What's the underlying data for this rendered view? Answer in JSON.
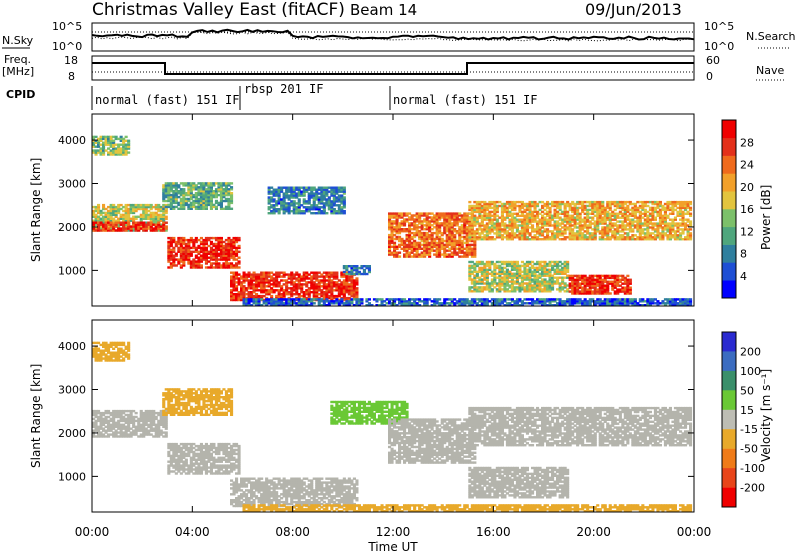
{
  "header": {
    "station": "Christmas Valley East (fitACF)",
    "beam": "Beam 14",
    "date": "09/Jun/2013"
  },
  "panels": {
    "noise": {
      "left_label": "N.Sky",
      "left_ticks": [
        "10^5",
        "10^0"
      ],
      "right_ticks": [
        "10^5",
        "10^0"
      ],
      "right_label": "N.Search"
    },
    "freq": {
      "left_label_1": "Freq.",
      "left_label_2": "[MHz]",
      "left_ticks": [
        "18",
        "8"
      ],
      "right_ticks": [
        "60",
        "0"
      ],
      "right_label": "Nave"
    },
    "cpid": {
      "label": "CPID",
      "segments": [
        "normal (fast) 151 IF",
        "rbsp 201 IF",
        "normal (fast) 151 IF"
      ]
    }
  },
  "colors": {
    "power_scale": [
      "#0000ff",
      "#1e4fd4",
      "#2f7f9e",
      "#4fa67d",
      "#7cc06a",
      "#e2c43e",
      "#f2a02a",
      "#ef6a1c",
      "#e3301a",
      "#f00000"
    ],
    "velocity_scale": [
      "#2a2ad0",
      "#3b6cc0",
      "#3a8f6a",
      "#6ac835",
      "#bdbdb4",
      "#e8a92a",
      "#ef7b18",
      "#e8451a",
      "#f00000"
    ],
    "ground_scatter": "#b4b4ac"
  },
  "chart_data": [
    {
      "type": "heatmap",
      "parameter": "power",
      "xlabel": "",
      "ylabel": "Slant Range [km]",
      "x_ticks": [
        "00:00",
        "04:00",
        "08:00",
        "12:00",
        "16:00",
        "20:00",
        "00:00"
      ],
      "y_ticks": [
        "1000",
        "2000",
        "3000",
        "4000"
      ],
      "ylim": [
        180,
        4600
      ],
      "colorbar": {
        "label": "Power [dB]",
        "ticks": [
          "4",
          "8",
          "12",
          "16",
          "20",
          "24",
          "28"
        ],
        "range": [
          0,
          32
        ]
      },
      "bands": [
        {
          "t": [
            0,
            3.0
          ],
          "range_km": [
            1900,
            2500
          ],
          "power_db": 16
        },
        {
          "t": [
            0,
            3.0
          ],
          "range_km": [
            1900,
            2100
          ],
          "power_db": 28
        },
        {
          "t": [
            0,
            1.5
          ],
          "range_km": [
            3650,
            4100
          ],
          "power_db": 14
        },
        {
          "t": [
            3.0,
            5.8
          ],
          "range_km": [
            1050,
            1750
          ],
          "power_db": 28
        },
        {
          "t": [
            2.8,
            5.5
          ],
          "range_km": [
            2400,
            3000
          ],
          "power_db": 12
        },
        {
          "t": [
            5.5,
            10.5
          ],
          "range_km": [
            300,
            950
          ],
          "power_db": 28
        },
        {
          "t": [
            7.0,
            10.0
          ],
          "range_km": [
            2300,
            2900
          ],
          "power_db": 8
        },
        {
          "t": [
            10.0,
            11.0
          ],
          "range_km": [
            900,
            1100
          ],
          "power_db": 8
        },
        {
          "t": [
            11.8,
            15.2
          ],
          "range_km": [
            1300,
            2300
          ],
          "power_db": 24
        },
        {
          "t": [
            15.0,
            23.9
          ],
          "range_km": [
            1700,
            2600
          ],
          "power_db": 20
        },
        {
          "t": [
            15.0,
            19.0
          ],
          "range_km": [
            500,
            1200
          ],
          "power_db": 16
        },
        {
          "t": [
            19.0,
            21.5
          ],
          "range_km": [
            450,
            900
          ],
          "power_db": 28
        },
        {
          "t": [
            6.0,
            23.9
          ],
          "range_km": [
            180,
            320
          ],
          "power_db": 6
        }
      ]
    },
    {
      "type": "heatmap",
      "parameter": "velocity",
      "xlabel": "Time UT",
      "ylabel": "Slant Range [km]",
      "x_ticks": [
        "00:00",
        "04:00",
        "08:00",
        "12:00",
        "16:00",
        "20:00",
        "00:00"
      ],
      "y_ticks": [
        "1000",
        "2000",
        "3000",
        "4000"
      ],
      "ylim": [
        180,
        4600
      ],
      "colorbar": {
        "label": "Velocity [m s⁻¹]",
        "ticks": [
          "200",
          "100",
          "50",
          "15",
          "-15",
          "-50",
          "-100",
          "-200"
        ],
        "range": [
          -250,
          250
        ]
      },
      "bands": [
        {
          "t": [
            0,
            3.0
          ],
          "range_km": [
            1900,
            2500
          ],
          "velocity": 0
        },
        {
          "t": [
            0,
            1.5
          ],
          "range_km": [
            3650,
            4100
          ],
          "velocity": -60
        },
        {
          "t": [
            3.0,
            5.8
          ],
          "range_km": [
            1050,
            1750
          ],
          "velocity": 0
        },
        {
          "t": [
            2.8,
            5.5
          ],
          "range_km": [
            2400,
            3000
          ],
          "velocity": -60
        },
        {
          "t": [
            5.5,
            10.5
          ],
          "range_km": [
            300,
            950
          ],
          "velocity": 0
        },
        {
          "t": [
            9.5,
            12.5
          ],
          "range_km": [
            2200,
            2700
          ],
          "velocity": 40
        },
        {
          "t": [
            11.8,
            15.2
          ],
          "range_km": [
            1300,
            2300
          ],
          "velocity": 0
        },
        {
          "t": [
            15.0,
            23.9
          ],
          "range_km": [
            1700,
            2600
          ],
          "velocity": 0
        },
        {
          "t": [
            15.0,
            19.0
          ],
          "range_km": [
            500,
            1200
          ],
          "velocity": 0
        },
        {
          "t": [
            6.0,
            23.9
          ],
          "range_km": [
            180,
            320
          ],
          "velocity": -60
        }
      ]
    }
  ]
}
